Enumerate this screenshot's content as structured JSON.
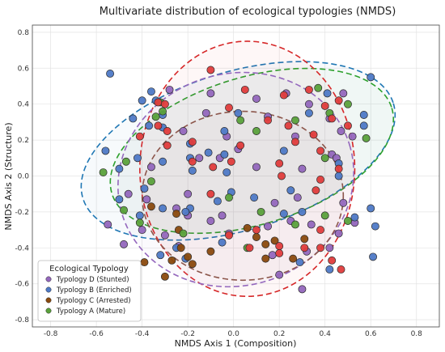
{
  "chart_data": {
    "type": "scatter",
    "title": "Multivariate distribution of ecological typologies (NMDS)",
    "xlabel": "NMDS Axis 1 (Composition)",
    "ylabel": "NMDS Axis 2 (Structure)",
    "xlim": [
      -0.88,
      0.9
    ],
    "ylim": [
      -0.84,
      0.84
    ],
    "xticks": [
      "-0.8",
      "-0.6",
      "-0.4",
      "-0.2",
      "0.0",
      "0.2",
      "0.4",
      "0.6",
      "0.8"
    ],
    "yticks": [
      "-0.8",
      "-0.6",
      "-0.4",
      "-0.2",
      "0.0",
      "0.2",
      "0.4",
      "0.6",
      "0.8"
    ],
    "grid": true,
    "legend": {
      "title": "Ecological Typology",
      "placement": "lower-left"
    },
    "series": [
      {
        "name": "Typology D (Stunted)",
        "color": "#9467bd",
        "points": [
          [
            -0.28,
            0.48
          ],
          [
            -0.1,
            0.46
          ],
          [
            0.23,
            0.46
          ],
          [
            0.48,
            0.46
          ],
          [
            0.1,
            0.43
          ],
          [
            0.33,
            0.4
          ],
          [
            -0.12,
            0.35
          ],
          [
            0.15,
            0.33
          ],
          [
            0.42,
            0.32
          ],
          [
            -0.22,
            0.25
          ],
          [
            0.47,
            0.25
          ],
          [
            0.52,
            0.22
          ],
          [
            0.27,
            0.22
          ],
          [
            -0.03,
            0.22
          ],
          [
            0.02,
            0.15
          ],
          [
            -0.15,
            0.1
          ],
          [
            0.43,
            0.12
          ],
          [
            -0.06,
            0.1
          ],
          [
            0.1,
            0.05
          ],
          [
            -0.36,
            0.05
          ],
          [
            0.3,
            0.04
          ],
          [
            0.45,
            0.1
          ],
          [
            -0.2,
            -0.1
          ],
          [
            -0.46,
            -0.1
          ],
          [
            -0.38,
            -0.13
          ],
          [
            -0.25,
            -0.18
          ],
          [
            -0.2,
            -0.22
          ],
          [
            0.28,
            -0.12
          ],
          [
            0.18,
            -0.15
          ],
          [
            0.15,
            -0.28
          ],
          [
            -0.4,
            -0.3
          ],
          [
            -0.3,
            -0.33
          ],
          [
            -0.1,
            -0.25
          ],
          [
            -0.05,
            -0.22
          ],
          [
            0.25,
            -0.25
          ],
          [
            0.34,
            -0.27
          ],
          [
            0.48,
            -0.15
          ],
          [
            0.46,
            -0.32
          ],
          [
            -0.24,
            -0.39
          ],
          [
            -0.02,
            -0.32
          ],
          [
            0.17,
            -0.44
          ],
          [
            0.42,
            -0.4
          ],
          [
            0.32,
            -0.42
          ],
          [
            -0.48,
            -0.38
          ],
          [
            -0.55,
            -0.27
          ],
          [
            0.53,
            -0.26
          ],
          [
            0.2,
            -0.55
          ],
          [
            0.3,
            -0.63
          ]
        ]
      },
      {
        "name": "Typology B (Enriched)",
        "color": "#4e79c6",
        "points": [
          [
            -0.54,
            0.57
          ],
          [
            -0.36,
            0.47
          ],
          [
            -0.34,
            0.42
          ],
          [
            -0.4,
            0.42
          ],
          [
            0.6,
            0.55
          ],
          [
            -0.44,
            0.32
          ],
          [
            -0.31,
            0.34
          ],
          [
            -0.37,
            0.28
          ],
          [
            -0.31,
            0.27
          ],
          [
            -0.04,
            0.25
          ],
          [
            0.02,
            0.35
          ],
          [
            0.41,
            0.46
          ],
          [
            0.33,
            0.35
          ],
          [
            0.57,
            0.34
          ],
          [
            0.57,
            0.28
          ],
          [
            -0.19,
            0.18
          ],
          [
            -0.11,
            0.13
          ],
          [
            -0.04,
            0.12
          ],
          [
            0.22,
            0.14
          ],
          [
            -0.19,
            0.1
          ],
          [
            -0.42,
            0.1
          ],
          [
            -0.18,
            0.03
          ],
          [
            -0.56,
            0.14
          ],
          [
            0.46,
            0.07
          ],
          [
            0.46,
            0.0
          ],
          [
            -0.03,
            0.02
          ],
          [
            -0.31,
            0.08
          ],
          [
            -0.5,
            0.04
          ],
          [
            -0.19,
            -0.18
          ],
          [
            -0.07,
            -0.14
          ],
          [
            -0.01,
            -0.09
          ],
          [
            0.09,
            -0.12
          ],
          [
            0.25,
            -0.08
          ],
          [
            0.3,
            -0.2
          ],
          [
            -0.31,
            -0.18
          ],
          [
            -0.21,
            -0.2
          ],
          [
            -0.39,
            -0.07
          ],
          [
            -0.5,
            -0.13
          ],
          [
            0.22,
            -0.21
          ],
          [
            0.53,
            -0.23
          ],
          [
            0.6,
            -0.18
          ],
          [
            0.62,
            -0.28
          ],
          [
            0.61,
            -0.45
          ],
          [
            0.42,
            -0.52
          ],
          [
            -0.25,
            -0.4
          ],
          [
            0.29,
            -0.48
          ],
          [
            -0.05,
            -0.37
          ],
          [
            -0.21,
            -0.46
          ],
          [
            -0.41,
            -0.22
          ],
          [
            -0.32,
            -0.44
          ]
        ]
      },
      {
        "name": "Typology C (Arrested)",
        "color": "#8a4a0e",
        "points": [
          [
            -0.25,
            -0.21
          ],
          [
            -0.36,
            -0.17
          ],
          [
            -0.24,
            -0.3
          ],
          [
            -0.23,
            -0.4
          ],
          [
            -0.3,
            -0.56
          ],
          [
            -0.39,
            -0.48
          ],
          [
            -0.27,
            -0.47
          ],
          [
            -0.2,
            -0.45
          ],
          [
            0.06,
            -0.29
          ],
          [
            0.1,
            -0.34
          ],
          [
            0.14,
            -0.38
          ],
          [
            -0.1,
            -0.42
          ],
          [
            -0.18,
            -0.49
          ],
          [
            0.26,
            -0.46
          ],
          [
            0.31,
            -0.35
          ],
          [
            0.14,
            -0.46
          ],
          [
            0.18,
            -0.36
          ]
        ]
      },
      {
        "name": "Typology A (Mature)",
        "color": "#5aa13b",
        "points": [
          [
            0.37,
            0.49
          ],
          [
            -0.32,
            0.41
          ],
          [
            -0.31,
            0.36
          ],
          [
            -0.34,
            0.33
          ],
          [
            -0.47,
            0.08
          ],
          [
            0.42,
            0.35
          ],
          [
            0.5,
            0.4
          ],
          [
            0.03,
            0.31
          ],
          [
            0.27,
            0.31
          ],
          [
            0.1,
            0.25
          ],
          [
            0.58,
            0.21
          ],
          [
            0.4,
            0.1
          ],
          [
            -0.36,
            -0.03
          ],
          [
            -0.57,
            0.02
          ],
          [
            -0.48,
            -0.19
          ],
          [
            -0.02,
            -0.12
          ],
          [
            0.12,
            -0.2
          ],
          [
            -0.41,
            -0.26
          ],
          [
            0.27,
            -0.27
          ],
          [
            0.5,
            -0.25
          ],
          [
            0.4,
            -0.22
          ],
          [
            -0.22,
            -0.32
          ],
          [
            0.06,
            -0.4
          ]
        ]
      },
      {
        "name": "",
        "color": "#e03c3c",
        "points": [
          [
            -0.1,
            0.59
          ],
          [
            -0.33,
            0.41
          ],
          [
            -0.3,
            0.4
          ],
          [
            -0.33,
            0.28
          ],
          [
            -0.29,
            0.25
          ],
          [
            0.05,
            0.48
          ],
          [
            -0.02,
            0.38
          ],
          [
            0.22,
            0.45
          ],
          [
            0.33,
            0.48
          ],
          [
            0.46,
            0.42
          ],
          [
            0.43,
            0.32
          ],
          [
            0.5,
            0.28
          ],
          [
            0.4,
            0.39
          ],
          [
            0.24,
            0.28
          ],
          [
            0.15,
            0.31
          ],
          [
            -0.41,
            0.22
          ],
          [
            -0.18,
            0.19
          ],
          [
            0.27,
            0.19
          ],
          [
            0.35,
            0.23
          ],
          [
            0.46,
            0.04
          ],
          [
            0.03,
            0.17
          ],
          [
            -0.09,
            0.05
          ],
          [
            -0.01,
            0.08
          ],
          [
            0.2,
            0.07
          ],
          [
            -0.18,
            0.08
          ],
          [
            -0.29,
            0.17
          ],
          [
            0.38,
            -0.02
          ],
          [
            0.21,
            0.0
          ],
          [
            0.38,
            0.14
          ],
          [
            0.36,
            -0.08
          ],
          [
            -0.1,
            -0.1
          ],
          [
            0.1,
            -0.3
          ],
          [
            0.07,
            -0.4
          ],
          [
            0.2,
            -0.39
          ],
          [
            0.31,
            -0.4
          ],
          [
            0.38,
            -0.3
          ],
          [
            0.38,
            -0.4
          ],
          [
            0.43,
            -0.47
          ],
          [
            0.47,
            -0.52
          ],
          [
            -0.02,
            -0.33
          ],
          [
            0.2,
            -0.43
          ]
        ]
      }
    ],
    "ellipses": [
      {
        "color": "#1f77b4",
        "cx": 0.02,
        "cy": 0.14,
        "rx": 0.71,
        "ry": 0.44,
        "angle_deg": -17
      },
      {
        "color": "#2ca02c",
        "cx": 0.08,
        "cy": 0.14,
        "rx": 0.64,
        "ry": 0.41,
        "angle_deg": -17
      },
      {
        "color": "#d62728",
        "cx": 0.06,
        "cy": 0.04,
        "rx": 0.47,
        "ry": 0.71,
        "angle_deg": 0
      },
      {
        "color": "#9467bd",
        "cx": 0.01,
        "cy": -0.02,
        "rx": 0.52,
        "ry": 0.59,
        "angle_deg": -17
      },
      {
        "color": "#8c564b",
        "cx": 0.04,
        "cy": -0.11,
        "rx": 0.44,
        "ry": 0.47,
        "angle_deg": 0
      }
    ]
  }
}
